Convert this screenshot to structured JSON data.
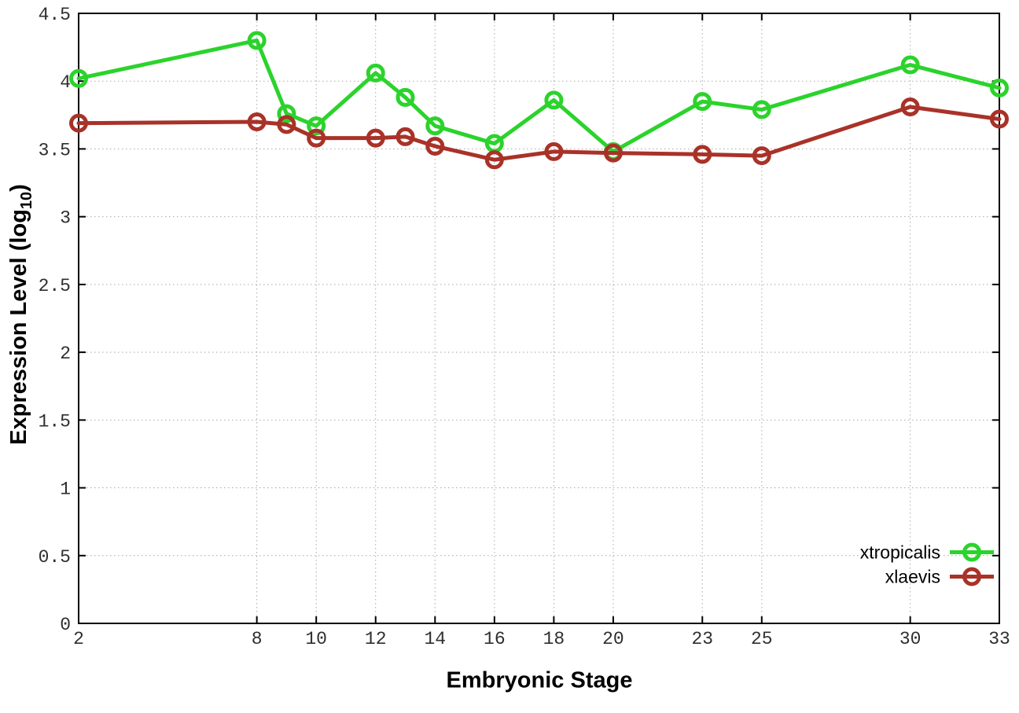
{
  "chart_data": {
    "type": "line",
    "title": "",
    "xlabel": "Embryonic Stage",
    "ylabel": "Expression Level (log10)",
    "ylabel_parts": {
      "prefix": "Expression Level (log",
      "subscript": "10",
      "suffix": ")"
    },
    "x": [
      2,
      8,
      9,
      10,
      12,
      13,
      14,
      16,
      18,
      20,
      23,
      25,
      30,
      33
    ],
    "series": [
      {
        "name": "xtropicalis",
        "color": "#2bd32b",
        "values": [
          4.02,
          4.3,
          3.76,
          3.67,
          4.06,
          3.88,
          3.67,
          3.54,
          3.86,
          3.48,
          3.85,
          3.79,
          4.12,
          3.95
        ]
      },
      {
        "name": "xlaevis",
        "color": "#a93228",
        "values": [
          3.69,
          3.7,
          3.68,
          3.58,
          3.58,
          3.59,
          3.52,
          3.42,
          3.48,
          3.47,
          3.46,
          3.45,
          3.81,
          3.72
        ]
      }
    ],
    "xlim": [
      2,
      33
    ],
    "ylim": [
      0,
      4.5
    ],
    "x_ticks": [
      2,
      8,
      10,
      12,
      14,
      16,
      18,
      20,
      23,
      25,
      30,
      33
    ],
    "x_tick_labels": [
      "2",
      "8",
      "10",
      "12",
      "14",
      "16",
      "18",
      "20",
      "23",
      "25",
      "30",
      "33"
    ],
    "y_ticks": [
      0,
      0.5,
      1,
      1.5,
      2,
      2.5,
      3,
      3.5,
      4,
      4.5
    ],
    "y_tick_labels": [
      "0",
      "0.5",
      "1",
      "1.5",
      "2",
      "2.5",
      "3",
      "3.5",
      "4",
      "4.5"
    ],
    "grid": "dotted",
    "legend_position": "bottom-right",
    "marker": "open-circle",
    "colors": {
      "background": "#ffffff",
      "axis": "#000000",
      "grid": "#a8a8a8",
      "tick_label": "#2e2e2e",
      "legend_text": "#000000"
    }
  }
}
